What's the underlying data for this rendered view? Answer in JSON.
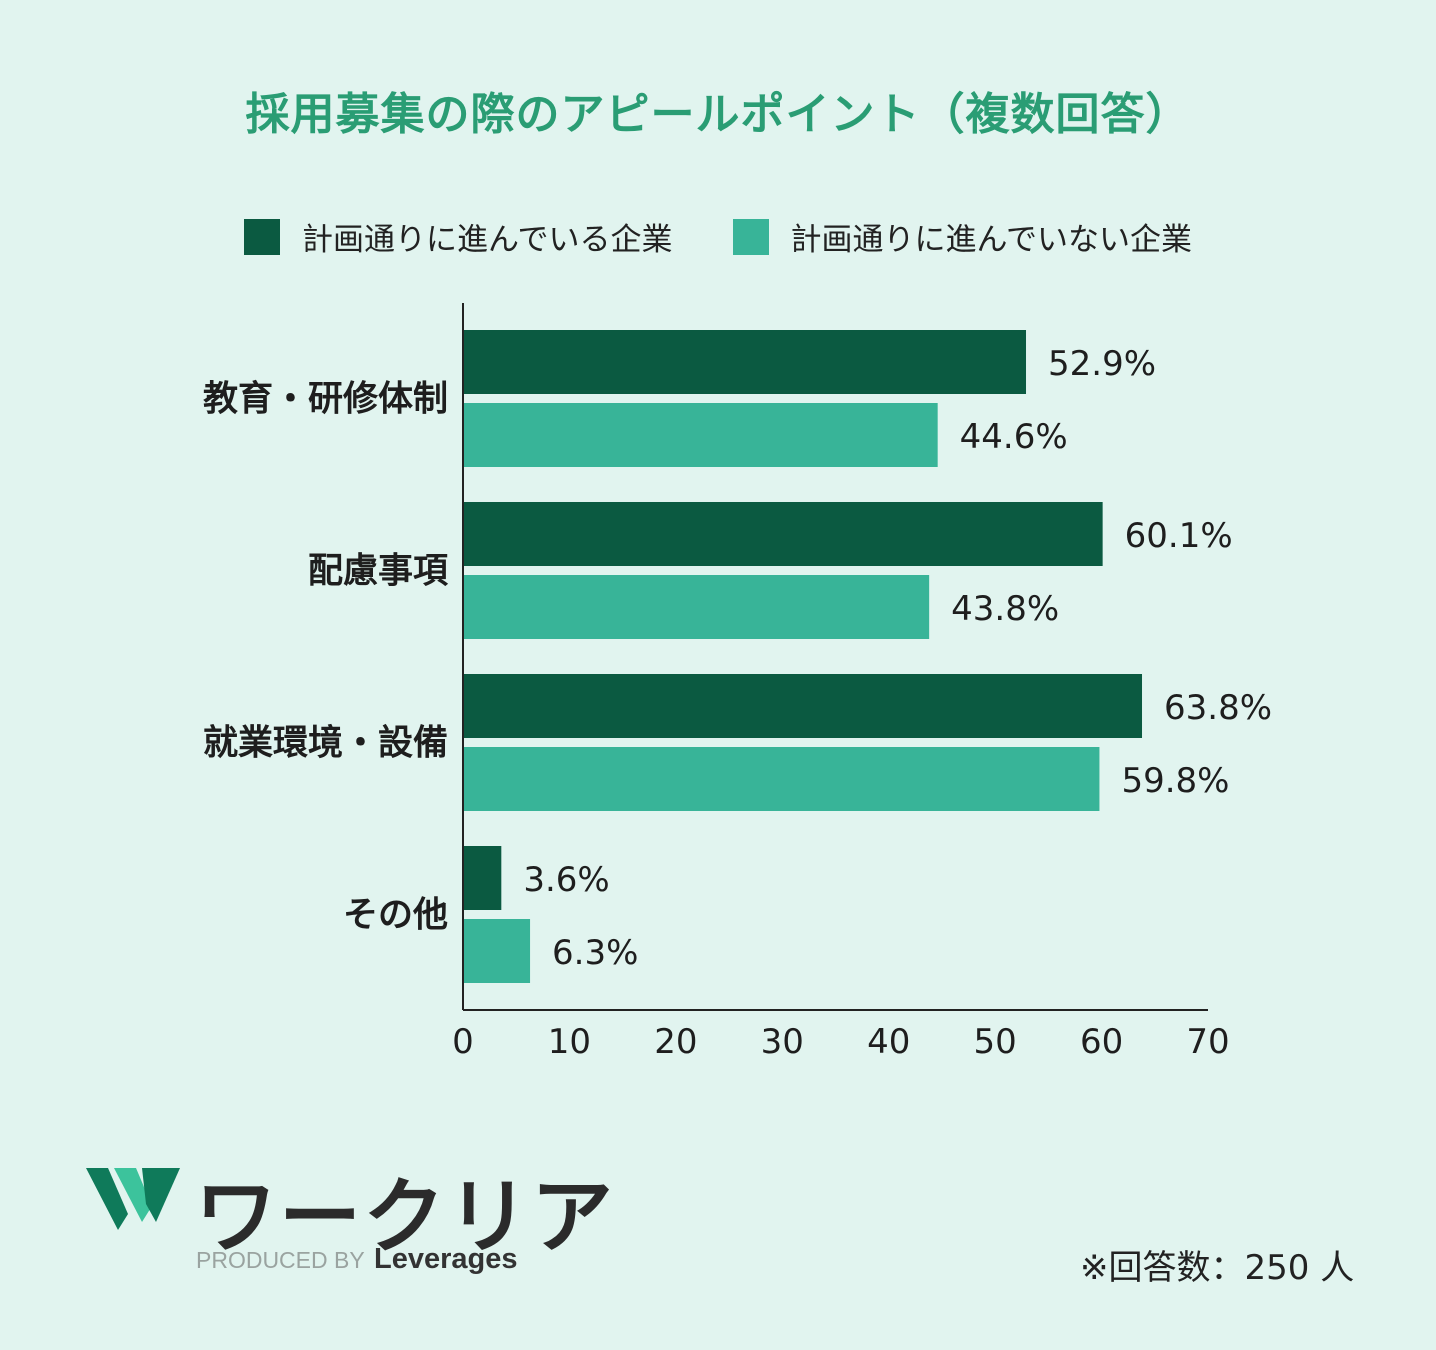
{
  "chart_data": {
    "type": "bar",
    "orientation": "horizontal",
    "title": "採用募集の際のアピールポイント（複数回答）",
    "categories": [
      "教育・研修体制",
      "配慮事項",
      "就業環境・設備",
      "その他"
    ],
    "series": [
      {
        "name": "計画通りに進んでいる企業",
        "color": "#0b5a41",
        "values": [
          52.9,
          60.1,
          63.8,
          3.6
        ],
        "labels": [
          "52.9%",
          "60.1%",
          "63.8%",
          "3.6%"
        ]
      },
      {
        "name": "計画通りに進んでいない企業",
        "color": "#38b498",
        "values": [
          44.6,
          43.8,
          59.8,
          6.3
        ],
        "labels": [
          "44.6%",
          "43.8%",
          "59.8%",
          "6.3%"
        ]
      }
    ],
    "xlim": [
      0,
      70
    ],
    "xticks": [
      "0",
      "10",
      "20",
      "30",
      "40",
      "50",
      "60",
      "70"
    ],
    "legend_position": "top",
    "grid": false
  },
  "footer": {
    "logo_text": "ワークリア",
    "produced_by": "PRODUCED BY",
    "brand": "Leverages",
    "note": "※回答数：250 人"
  },
  "colors": {
    "background": "#e1f4ef",
    "title": "#2a9d74",
    "logo_dark": "#0f7a5a",
    "logo_light": "#3cc39c"
  }
}
